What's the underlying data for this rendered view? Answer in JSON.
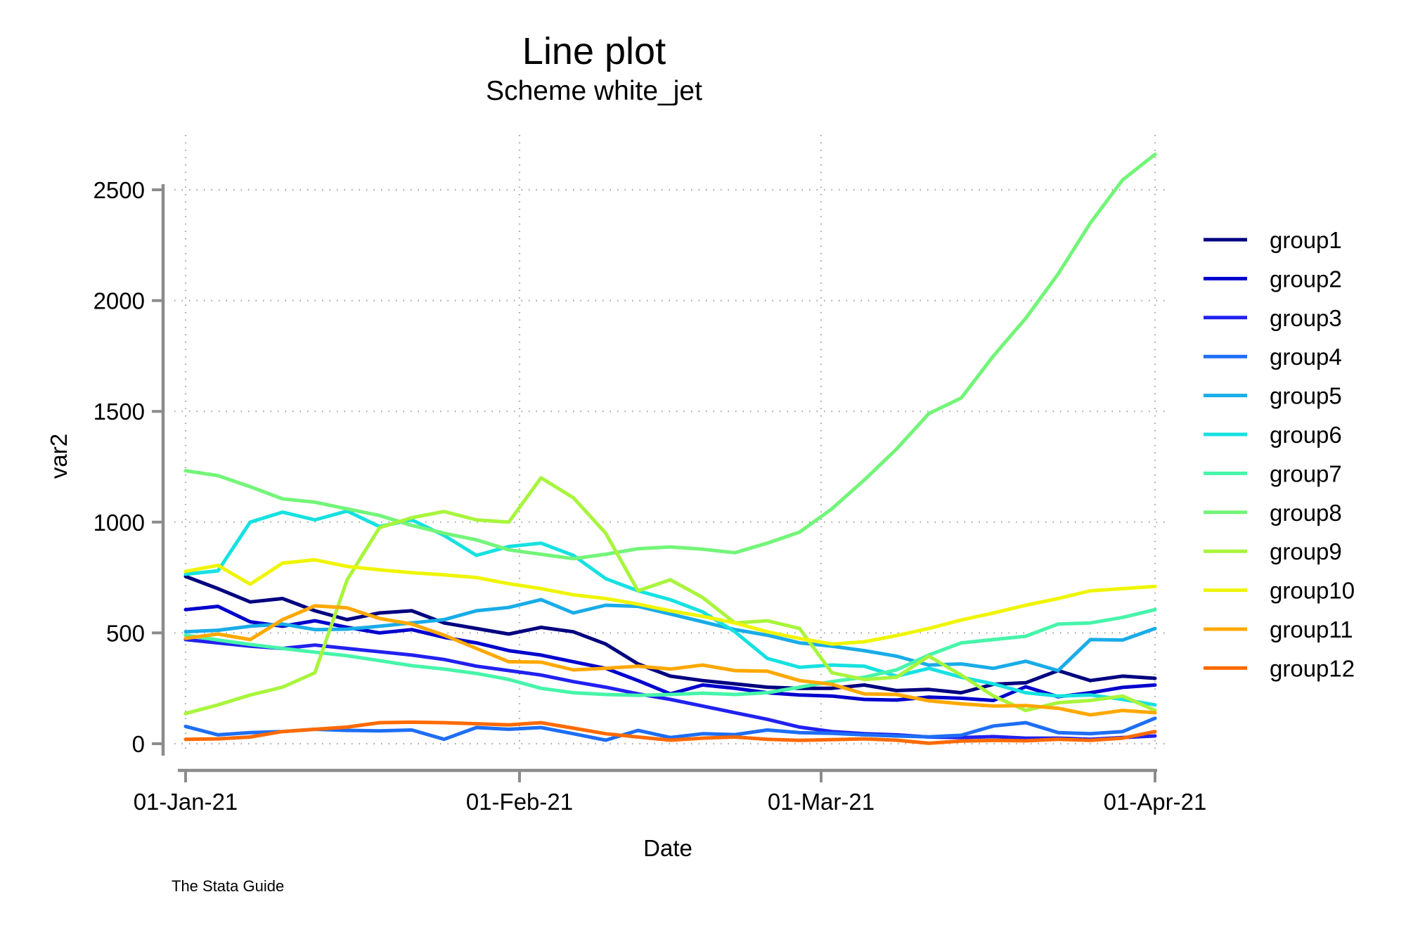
{
  "header": {
    "title": "Line plot",
    "subtitle": "Scheme white_jet"
  },
  "footer_text": "The Stata Guide",
  "chart_data": {
    "type": "line",
    "title": "Line plot",
    "subtitle": "Scheme white_jet",
    "xlabel": "Date",
    "ylabel": "var2",
    "legend_position": "right",
    "grid": "dotted horizontal and vertical gridlines",
    "axis_color": "#8c8c8c",
    "gridline_color": "#8f8f8f",
    "ylim": [
      0,
      2700
    ],
    "y_ticks": [
      0,
      500,
      1000,
      1500,
      2000,
      2500
    ],
    "x_tick_labels": [
      "01-Jan-21",
      "01-Feb-21",
      "01-Mar-21",
      "01-Apr-21"
    ],
    "x_tick_days": [
      0,
      31,
      59,
      90
    ],
    "x_days": [
      0,
      3,
      6,
      9,
      12,
      15,
      18,
      21,
      24,
      27,
      30,
      33,
      36,
      39,
      42,
      45,
      48,
      51,
      54,
      57,
      60,
      63,
      66,
      69,
      72,
      75,
      78,
      81,
      84,
      87,
      90
    ],
    "series": [
      {
        "name": "group1",
        "color": "#000080",
        "values": [
          755,
          700,
          640,
          655,
          600,
          560,
          590,
          600,
          545,
          520,
          495,
          525,
          505,
          450,
          360,
          305,
          285,
          270,
          255,
          250,
          250,
          265,
          240,
          245,
          230,
          268,
          275,
          330,
          285,
          305,
          295
        ]
      },
      {
        "name": "group2",
        "color": "#0000CD",
        "values": [
          605,
          620,
          550,
          530,
          555,
          525,
          500,
          515,
          480,
          455,
          420,
          400,
          370,
          340,
          285,
          225,
          265,
          250,
          230,
          220,
          215,
          200,
          197,
          210,
          205,
          195,
          257,
          212,
          230,
          254,
          265
        ]
      },
      {
        "name": "group3",
        "color": "#2121F0",
        "values": [
          470,
          455,
          440,
          430,
          445,
          430,
          415,
          400,
          380,
          350,
          330,
          310,
          280,
          255,
          225,
          200,
          170,
          140,
          110,
          75,
          55,
          45,
          40,
          30,
          28,
          32,
          25,
          25,
          20,
          28,
          35
        ]
      },
      {
        "name": "group4",
        "color": "#1E6EF5",
        "values": [
          78,
          40,
          50,
          55,
          65,
          60,
          58,
          62,
          20,
          73,
          65,
          73,
          45,
          16,
          60,
          28,
          45,
          41,
          62,
          50,
          47,
          40,
          35,
          31,
          38,
          80,
          95,
          50,
          45,
          55,
          115
        ]
      },
      {
        "name": "group5",
        "color": "#19ACE8",
        "values": [
          505,
          512,
          530,
          540,
          515,
          517,
          530,
          545,
          560,
          600,
          615,
          650,
          590,
          625,
          620,
          585,
          550,
          515,
          490,
          455,
          440,
          420,
          395,
          355,
          360,
          340,
          372,
          330,
          470,
          468,
          520
        ]
      },
      {
        "name": "group6",
        "color": "#16E1E1",
        "values": [
          765,
          780,
          1000,
          1045,
          1010,
          1050,
          980,
          1010,
          940,
          850,
          890,
          905,
          850,
          745,
          690,
          650,
          595,
          505,
          385,
          345,
          355,
          350,
          305,
          340,
          300,
          270,
          230,
          215,
          220,
          200,
          175
        ]
      },
      {
        "name": "group7",
        "color": "#46F5A9",
        "values": [
          490,
          468,
          448,
          430,
          413,
          397,
          375,
          352,
          337,
          317,
          290,
          250,
          230,
          222,
          218,
          222,
          228,
          222,
          230,
          255,
          280,
          300,
          333,
          400,
          455,
          470,
          485,
          540,
          545,
          570,
          605
        ]
      },
      {
        "name": "group8",
        "color": "#72F578",
        "values": [
          1232,
          1210,
          1160,
          1105,
          1090,
          1060,
          1030,
          985,
          950,
          920,
          875,
          855,
          835,
          855,
          880,
          888,
          878,
          862,
          905,
          955,
          1060,
          1190,
          1330,
          1490,
          1560,
          1750,
          1920,
          2120,
          2350,
          2545,
          2660
        ]
      },
      {
        "name": "group9",
        "color": "#A8F53C",
        "values": [
          136,
          175,
          220,
          255,
          320,
          740,
          975,
          1020,
          1048,
          1010,
          1000,
          1200,
          1110,
          950,
          690,
          740,
          660,
          545,
          555,
          520,
          320,
          290,
          300,
          395,
          310,
          215,
          150,
          185,
          195,
          215,
          150
        ]
      },
      {
        "name": "group10",
        "color": "#EFF500",
        "values": [
          778,
          805,
          720,
          815,
          830,
          800,
          785,
          772,
          762,
          750,
          722,
          700,
          672,
          655,
          630,
          600,
          575,
          545,
          505,
          475,
          450,
          460,
          488,
          520,
          558,
          590,
          625,
          655,
          690,
          700,
          710
        ]
      },
      {
        "name": "group11",
        "color": "#FFA800",
        "values": [
          476,
          495,
          470,
          560,
          622,
          613,
          565,
          540,
          490,
          430,
          370,
          368,
          333,
          340,
          350,
          337,
          355,
          330,
          327,
          285,
          268,
          225,
          222,
          194,
          180,
          170,
          172,
          160,
          130,
          150,
          140
        ]
      },
      {
        "name": "group12",
        "color": "#FF6A00",
        "values": [
          20,
          22,
          30,
          55,
          65,
          75,
          95,
          97,
          95,
          90,
          85,
          95,
          70,
          45,
          30,
          16,
          25,
          30,
          20,
          15,
          18,
          22,
          16,
          2,
          12,
          15,
          13,
          20,
          15,
          25,
          55
        ]
      }
    ]
  }
}
